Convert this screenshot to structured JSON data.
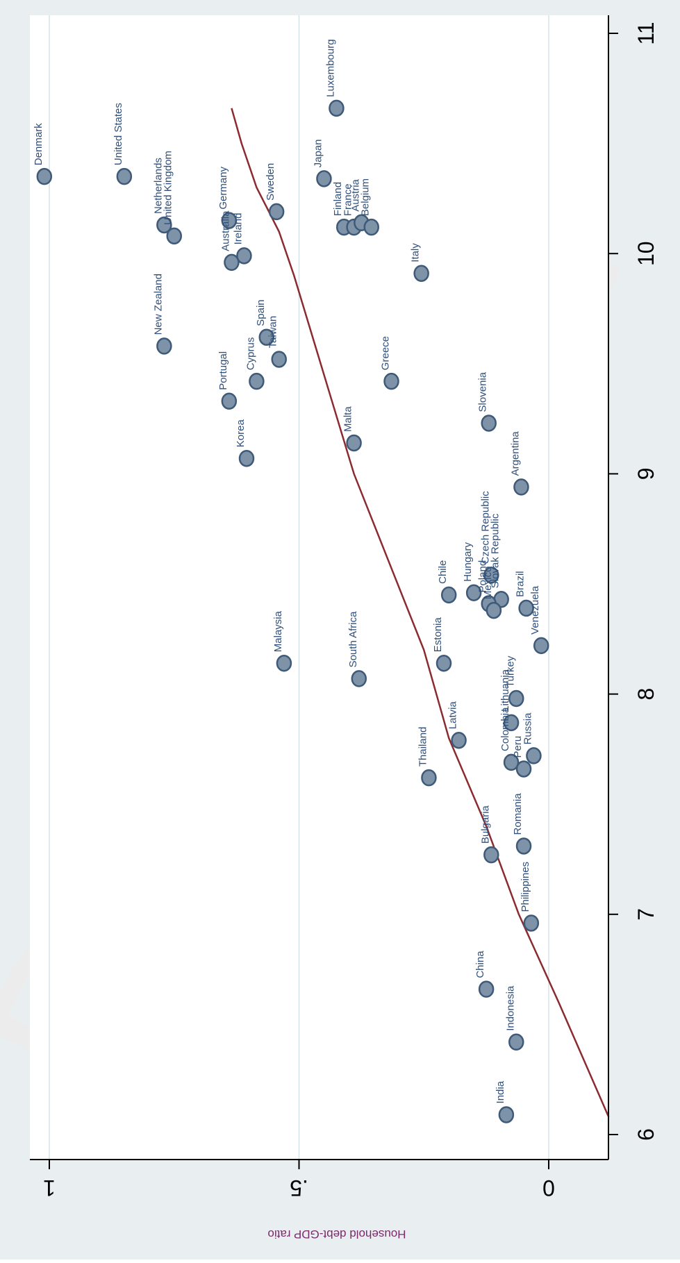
{
  "page": {
    "watermark_text": "Draft",
    "background_color": "#e9eef0",
    "plot_background_color": "#ffffff"
  },
  "chart_data": {
    "type": "scatter",
    "title": "",
    "xlabel": "",
    "ylabel": "Household debt-GDP ratio",
    "orientation": "rotated-90-clockwise",
    "xlim": [
      5.9,
      11.15
    ],
    "ylim": [
      -0.12,
      1.05
    ],
    "x_ticks": [
      {
        "value": 6,
        "label": "6"
      },
      {
        "value": 7,
        "label": "7"
      },
      {
        "value": 8,
        "label": "8"
      },
      {
        "value": 9,
        "label": "9"
      },
      {
        "value": 10,
        "label": "10"
      },
      {
        "value": 11,
        "label": "11"
      }
    ],
    "y_ticks": [
      {
        "value": 0,
        "label": "0"
      },
      {
        "value": 0.5,
        "label": ".5"
      },
      {
        "value": 1,
        "label": "1"
      }
    ],
    "grid": true,
    "colors": {
      "marker_fill": "#7f93a8",
      "marker_stroke": "#3e5a78",
      "label": "#2f4f7a",
      "fit_line": "#8b2b2f",
      "ylabel": "#7a2a6a",
      "grid": "#d5e3e6",
      "axis": "#000000",
      "watermark": "#ececec"
    },
    "points": [
      {
        "label": "Denmark",
        "x": 10.35,
        "y": 1.01
      },
      {
        "label": "United States",
        "x": 10.35,
        "y": 0.85
      },
      {
        "label": "Netherlands",
        "x": 10.13,
        "y": 0.77
      },
      {
        "label": "United Kingdom",
        "x": 10.08,
        "y": 0.75
      },
      {
        "label": "New Zealand",
        "x": 9.58,
        "y": 0.77
      },
      {
        "label": "Germany",
        "x": 10.15,
        "y": 0.64
      },
      {
        "label": "Australia",
        "x": 9.96,
        "y": 0.635
      },
      {
        "label": "Ireland",
        "x": 9.99,
        "y": 0.61
      },
      {
        "label": "Sweden",
        "x": 10.19,
        "y": 0.545
      },
      {
        "label": "Portugal",
        "x": 9.33,
        "y": 0.64
      },
      {
        "label": "Cyprus",
        "x": 9.42,
        "y": 0.585
      },
      {
        "label": "Spain",
        "x": 9.62,
        "y": 0.565
      },
      {
        "label": "Taiwan",
        "x": 9.52,
        "y": 0.54
      },
      {
        "label": "Korea",
        "x": 9.07,
        "y": 0.605
      },
      {
        "label": "Luxembourg",
        "x": 10.66,
        "y": 0.425
      },
      {
        "label": "Japan",
        "x": 10.34,
        "y": 0.45
      },
      {
        "label": "Finland",
        "x": 10.12,
        "y": 0.41
      },
      {
        "label": "France",
        "x": 10.12,
        "y": 0.39
      },
      {
        "label": "Austria",
        "x": 10.14,
        "y": 0.375
      },
      {
        "label": "Belgium",
        "x": 10.12,
        "y": 0.355
      },
      {
        "label": "Italy",
        "x": 9.91,
        "y": 0.255
      },
      {
        "label": "Greece",
        "x": 9.42,
        "y": 0.315
      },
      {
        "label": "Malta",
        "x": 9.14,
        "y": 0.39
      },
      {
        "label": "Slovenia",
        "x": 9.23,
        "y": 0.12
      },
      {
        "label": "Argentina",
        "x": 8.94,
        "y": 0.055
      },
      {
        "label": "Czech Republic",
        "x": 8.54,
        "y": 0.115
      },
      {
        "label": "Slovak Republic",
        "x": 8.43,
        "y": 0.095
      },
      {
        "label": "Hungary",
        "x": 8.46,
        "y": 0.15
      },
      {
        "label": "Chile",
        "x": 8.45,
        "y": 0.2
      },
      {
        "label": "Poland",
        "x": 8.41,
        "y": 0.12
      },
      {
        "label": "Mexico",
        "x": 8.38,
        "y": 0.11
      },
      {
        "label": "Brazil",
        "x": 8.39,
        "y": 0.045
      },
      {
        "label": "Venezuela",
        "x": 8.22,
        "y": 0.015
      },
      {
        "label": "Estonia",
        "x": 8.14,
        "y": 0.21
      },
      {
        "label": "Malaysia",
        "x": 8.14,
        "y": 0.53
      },
      {
        "label": "South Africa",
        "x": 8.07,
        "y": 0.38
      },
      {
        "label": "Turkey",
        "x": 7.98,
        "y": 0.065
      },
      {
        "label": "Lithuania",
        "x": 7.87,
        "y": 0.075
      },
      {
        "label": "Latvia",
        "x": 7.79,
        "y": 0.18
      },
      {
        "label": "Thailand",
        "x": 7.62,
        "y": 0.24
      },
      {
        "label": "Colombia",
        "x": 7.69,
        "y": 0.075
      },
      {
        "label": "Peru",
        "x": 7.66,
        "y": 0.05
      },
      {
        "label": "Russia",
        "x": 7.72,
        "y": 0.03
      },
      {
        "label": "Bulgaria",
        "x": 7.27,
        "y": 0.115
      },
      {
        "label": "Romania",
        "x": 7.31,
        "y": 0.05
      },
      {
        "label": "Philippines",
        "x": 6.96,
        "y": 0.035
      },
      {
        "label": "China",
        "x": 6.66,
        "y": 0.125
      },
      {
        "label": "Indonesia",
        "x": 6.42,
        "y": 0.065
      },
      {
        "label": "India",
        "x": 6.09,
        "y": 0.085
      }
    ],
    "fit_line": [
      {
        "x": 6.08,
        "y": -0.12
      },
      {
        "x": 6.6,
        "y": -0.02
      },
      {
        "x": 7.0,
        "y": 0.06
      },
      {
        "x": 7.4,
        "y": 0.125
      },
      {
        "x": 7.8,
        "y": 0.2
      },
      {
        "x": 8.2,
        "y": 0.25
      },
      {
        "x": 8.6,
        "y": 0.32
      },
      {
        "x": 9.0,
        "y": 0.39
      },
      {
        "x": 9.3,
        "y": 0.43
      },
      {
        "x": 9.6,
        "y": 0.47
      },
      {
        "x": 9.9,
        "y": 0.51
      },
      {
        "x": 10.1,
        "y": 0.54
      },
      {
        "x": 10.3,
        "y": 0.585
      },
      {
        "x": 10.5,
        "y": 0.615
      },
      {
        "x": 10.66,
        "y": 0.635
      }
    ]
  }
}
